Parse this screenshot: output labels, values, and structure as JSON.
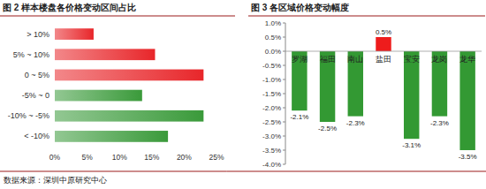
{
  "chart_data": [
    {
      "type": "bar",
      "orientation": "horizontal",
      "title": "图 2 样本楼盘各价格变动区间占比",
      "categories": [
        "> 10%",
        "5% ~ 10%",
        "0 ~ 5%",
        "-5% ~ 0",
        "-10% ~ -5%",
        "< -10%"
      ],
      "values": [
        6,
        15.5,
        23,
        13.5,
        23,
        17.5
      ],
      "colors": [
        "#e8262a",
        "#e8262a",
        "#e8262a",
        "#3a9a3a",
        "#3a9a3a",
        "#3a9a3a"
      ],
      "xlim": [
        0,
        25
      ],
      "xticks": [
        {
          "value": 0,
          "label": "0%"
        },
        {
          "value": 5,
          "label": "5%"
        },
        {
          "value": 10,
          "label": "10%"
        },
        {
          "value": 15,
          "label": "15%"
        },
        {
          "value": 20,
          "label": "20%"
        },
        {
          "value": 25,
          "label": "25%"
        }
      ],
      "grid": false
    },
    {
      "type": "bar",
      "title": "图 3 各区域价格变动幅度",
      "categories": [
        "罗湖",
        "福田",
        "南山",
        "盐田",
        "宝安",
        "龙岗",
        "龙华"
      ],
      "values": [
        -2.1,
        -2.5,
        -2.3,
        0.5,
        -3.1,
        -2.3,
        -3.5
      ],
      "value_labels": [
        "-2.1%",
        "-2.5%",
        "-2.3%",
        "0.5%",
        "-3.1%",
        "-2.3%",
        "-3.5%"
      ],
      "colors": [
        "#339933",
        "#339933",
        "#339933",
        "#ee1c1c",
        "#339933",
        "#339933",
        "#339933"
      ],
      "ylim": [
        -4,
        1
      ],
      "yticks": [
        {
          "value": 1,
          "label": "1.0%"
        },
        {
          "value": 0.5,
          "label": "0.5%"
        },
        {
          "value": 0,
          "label": "0.0%"
        },
        {
          "value": -0.5,
          "label": "-0.5%"
        },
        {
          "value": -1,
          "label": "-1.0%"
        },
        {
          "value": -1.5,
          "label": "-1.5%"
        },
        {
          "value": -2,
          "label": "-2.0%"
        },
        {
          "value": -2.5,
          "label": "-2.5%"
        },
        {
          "value": -3,
          "label": "-3.0%"
        },
        {
          "value": -3.5,
          "label": "-3.5%"
        },
        {
          "value": -4,
          "label": "-4.0%"
        }
      ],
      "data_labels": true,
      "grid": false
    }
  ],
  "source": "数据来源：深圳中原研究中心"
}
